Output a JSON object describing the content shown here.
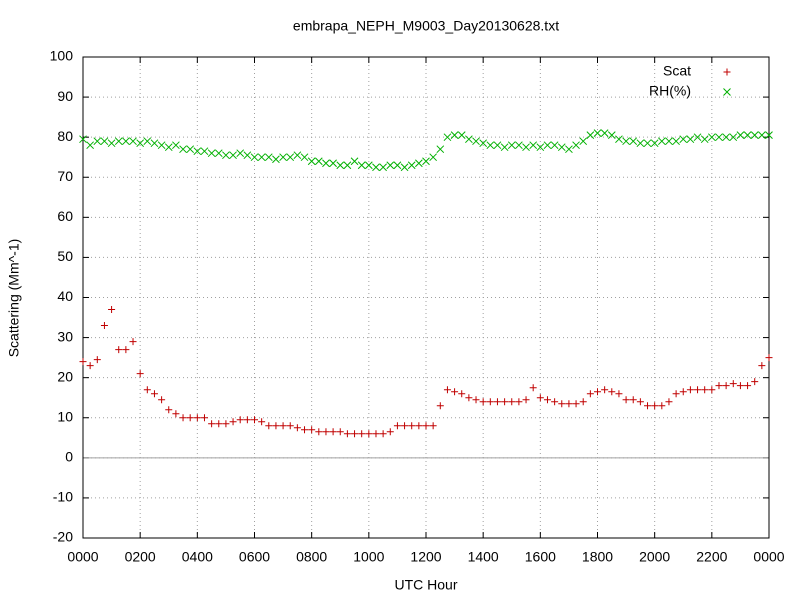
{
  "chart_data": {
    "type": "scatter",
    "title": "embrapa_NEPH_M9003_Day20130628.txt",
    "x_label": "UTC Hour",
    "y_label": "Scattering (Mm^-1)",
    "xlim": [
      0,
      24
    ],
    "ylim": [
      -20,
      100
    ],
    "xticks": [
      {
        "value": 0,
        "label": "0000"
      },
      {
        "value": 2,
        "label": "0200"
      },
      {
        "value": 4,
        "label": "0400"
      },
      {
        "value": 6,
        "label": "0600"
      },
      {
        "value": 8,
        "label": "0800"
      },
      {
        "value": 10,
        "label": "1000"
      },
      {
        "value": 12,
        "label": "1200"
      },
      {
        "value": 14,
        "label": "1400"
      },
      {
        "value": 16,
        "label": "1600"
      },
      {
        "value": 18,
        "label": "1800"
      },
      {
        "value": 20,
        "label": "2000"
      },
      {
        "value": 22,
        "label": "2200"
      },
      {
        "value": 24,
        "label": "0000"
      }
    ],
    "yticks": [
      -20,
      -10,
      0,
      10,
      20,
      30,
      40,
      50,
      60,
      70,
      80,
      90,
      100
    ],
    "grid": true,
    "legend": "top-right",
    "x": [
      0,
      0.25,
      0.5,
      0.75,
      1,
      1.25,
      1.5,
      1.75,
      2,
      2.25,
      2.5,
      2.75,
      3,
      3.25,
      3.5,
      3.75,
      4,
      4.25,
      4.5,
      4.75,
      5,
      5.25,
      5.5,
      5.75,
      6,
      6.25,
      6.5,
      6.75,
      7,
      7.25,
      7.5,
      7.75,
      8,
      8.25,
      8.5,
      8.75,
      9,
      9.25,
      9.5,
      9.75,
      10,
      10.25,
      10.5,
      10.75,
      11,
      11.25,
      11.5,
      11.75,
      12,
      12.25,
      12.5,
      12.75,
      13,
      13.25,
      13.5,
      13.75,
      14,
      14.25,
      14.5,
      14.75,
      15,
      15.25,
      15.5,
      15.75,
      16,
      16.25,
      16.5,
      16.75,
      17,
      17.25,
      17.5,
      17.75,
      18,
      18.25,
      18.5,
      18.75,
      19,
      19.25,
      19.5,
      19.75,
      20,
      20.25,
      20.5,
      20.75,
      21,
      21.25,
      21.5,
      21.75,
      22,
      22.25,
      22.5,
      22.75,
      23,
      23.25,
      23.5,
      23.75,
      24
    ],
    "series": [
      {
        "name": "Scat",
        "color": "#c00000",
        "marker": "+",
        "values": [
          24,
          23,
          24.5,
          33,
          37,
          27,
          27,
          29,
          21,
          17,
          16,
          14.5,
          12,
          11,
          10,
          10,
          10,
          10,
          8.5,
          8.5,
          8.5,
          9,
          9.5,
          9.5,
          9.5,
          9,
          8,
          8,
          8,
          8,
          7.5,
          7,
          7,
          6.5,
          6.5,
          6.5,
          6.5,
          6,
          6,
          6,
          6,
          6,
          6,
          6.5,
          8,
          8,
          8,
          8,
          8,
          8,
          13,
          17,
          16.5,
          16,
          15,
          14.5,
          14,
          14,
          14,
          14,
          14,
          14,
          14.5,
          17.5,
          15,
          14.5,
          14,
          13.5,
          13.5,
          13.5,
          14,
          16,
          16.5,
          17,
          16.5,
          16,
          14.5,
          14.5,
          14,
          13,
          13,
          13,
          14,
          16,
          16.5,
          17,
          17,
          17,
          17,
          18,
          18,
          18.5,
          18,
          18,
          19,
          23,
          25
        ]
      },
      {
        "name": "RH(%)",
        "color": "#00b000",
        "marker": "x",
        "values": [
          79.5,
          78,
          79,
          79,
          78.5,
          79,
          79,
          79,
          78.5,
          79,
          78.5,
          78,
          77.5,
          78,
          77,
          77,
          76.5,
          76.5,
          76,
          76,
          75.5,
          75.5,
          76,
          75.5,
          75,
          75,
          75,
          74.5,
          75,
          75,
          75.5,
          75,
          74,
          74,
          73.5,
          73.5,
          73,
          73,
          74,
          73,
          73,
          72.5,
          72.5,
          73,
          73,
          72.5,
          73,
          73.5,
          74,
          75,
          77,
          80,
          80.5,
          80.5,
          79.5,
          79,
          78.5,
          78,
          78,
          77.5,
          78,
          78,
          77.5,
          78,
          77.5,
          78,
          78,
          77.5,
          77,
          78,
          79,
          80.5,
          81,
          81,
          80.5,
          79.5,
          79,
          79,
          78.5,
          78.5,
          78.5,
          79,
          79,
          79,
          79.5,
          79.5,
          80,
          79.5,
          80,
          80,
          80,
          80,
          80.5,
          80.5,
          80.5,
          80.5,
          80.5
        ]
      }
    ]
  }
}
